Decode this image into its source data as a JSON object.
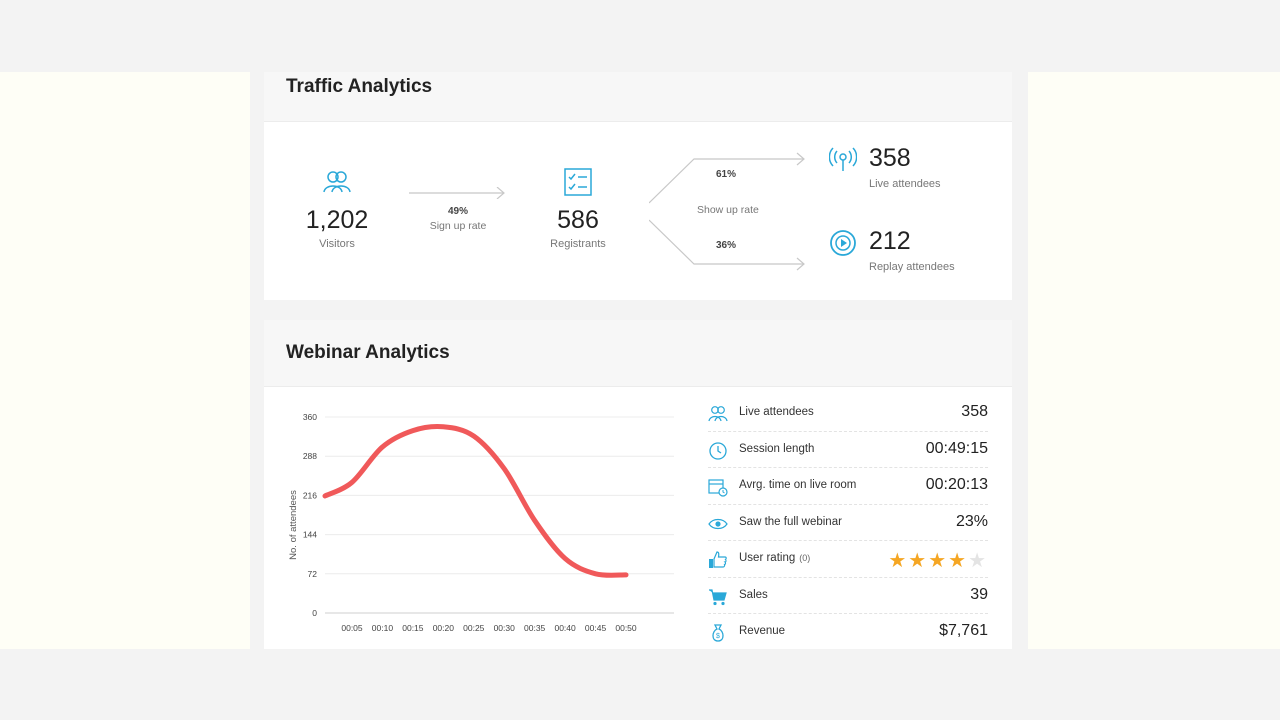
{
  "traffic": {
    "title": "Traffic Analytics",
    "visitors": {
      "value": "1,202",
      "label": "Visitors"
    },
    "signup": {
      "pct": "49%",
      "label": "Sign up rate"
    },
    "registrants": {
      "value": "586",
      "label": "Registrants"
    },
    "showup": {
      "label": "Show up rate",
      "live_pct": "61%",
      "replay_pct": "36%"
    },
    "live": {
      "value": "358",
      "label": "Live attendees"
    },
    "replay": {
      "value": "212",
      "label": "Replay attendees"
    }
  },
  "webinar": {
    "title": "Webinar Analytics",
    "metrics": [
      {
        "icon": "users-icon",
        "label": "Live attendees",
        "value": "358"
      },
      {
        "icon": "clock-icon",
        "label": "Session length",
        "value": "00:49:15"
      },
      {
        "icon": "calendar-clock-icon",
        "label": "Avrg. time on live room",
        "value": "00:20:13"
      },
      {
        "icon": "eye-icon",
        "label": "Saw the full webinar",
        "value": "23%"
      },
      {
        "icon": "thumbs-up-icon",
        "label": "User rating",
        "note": "(0)",
        "rating": 4,
        "rating_max": 5
      },
      {
        "icon": "cart-icon",
        "label": "Sales",
        "value": "39"
      },
      {
        "icon": "money-bag-icon",
        "label": "Revenue",
        "value": "$7,761"
      }
    ]
  },
  "colors": {
    "accent": "#2aa8d8",
    "line": "#f0595a",
    "star": "#f5a623"
  },
  "chart_data": {
    "type": "line",
    "ylabel": "No. of attendees",
    "xlabel": "",
    "ylim": [
      0,
      360
    ],
    "yticks": [
      0,
      72,
      144,
      216,
      288,
      360
    ],
    "categories": [
      "00:05",
      "00:10",
      "00:15",
      "00:20",
      "00:25",
      "00:30",
      "00:35",
      "00:40",
      "00:45",
      "00:50"
    ],
    "series": [
      {
        "values": [
          240,
          305,
          335,
          342,
          325,
          265,
          170,
          100,
          72,
          70
        ]
      }
    ],
    "grid": true
  }
}
